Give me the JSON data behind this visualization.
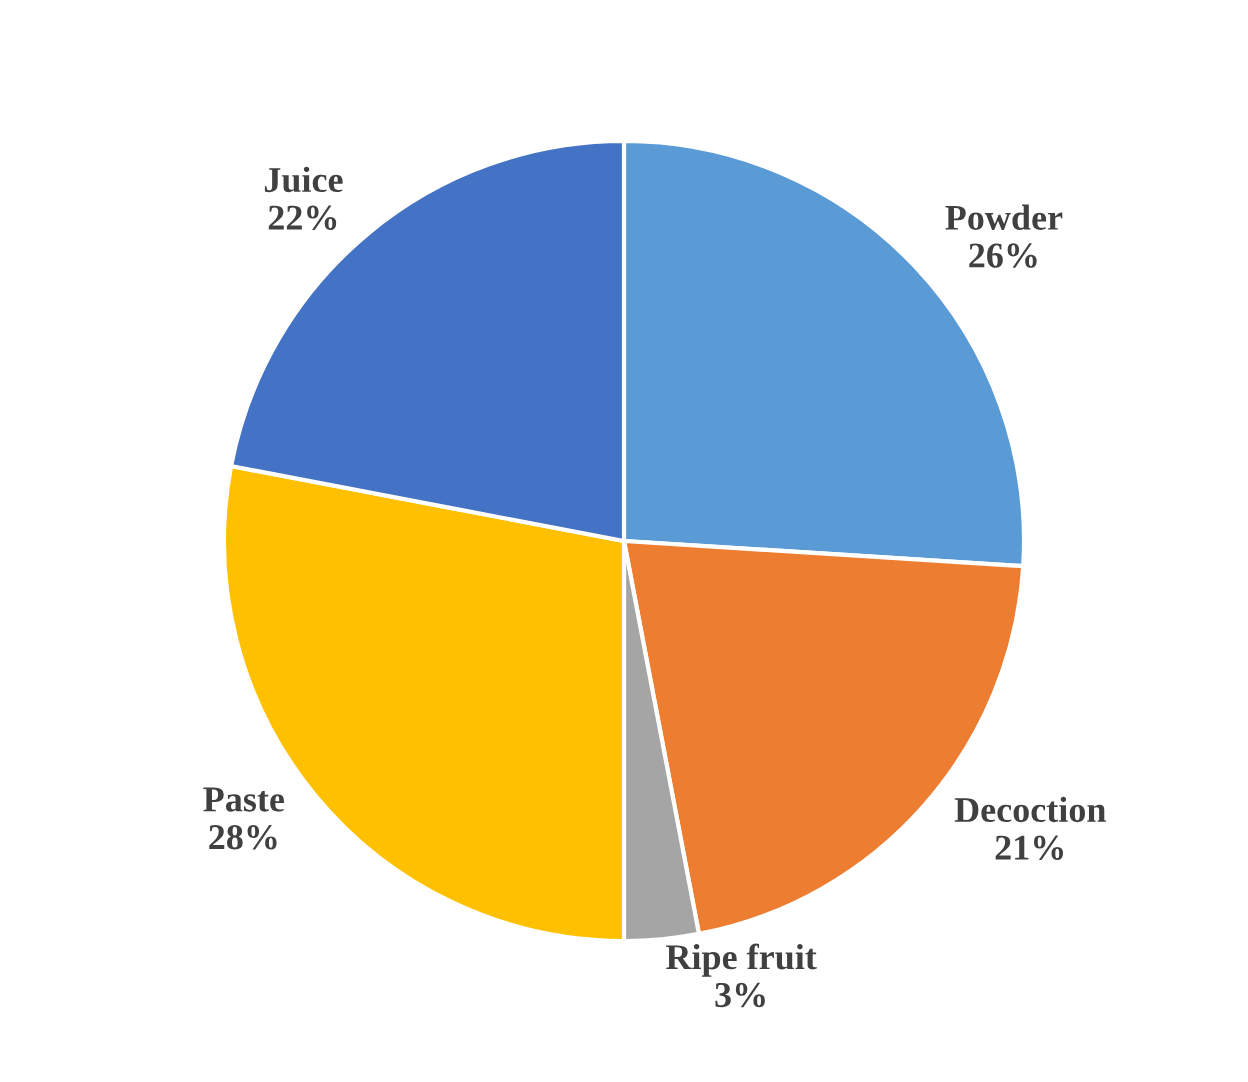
{
  "chart_data": {
    "type": "pie",
    "categories": [
      "Powder",
      "Decoction",
      "Ripe fruit",
      "Paste",
      "Juice"
    ],
    "values": [
      26,
      21,
      3,
      28,
      22
    ],
    "value_labels": [
      "26%",
      "21%",
      "3%",
      "28%",
      "22%"
    ],
    "colors": [
      "#5b9bd5",
      "#ed7d31",
      "#a5a5a5",
      "#ffc000",
      "#4472c4"
    ],
    "legend": false
  }
}
